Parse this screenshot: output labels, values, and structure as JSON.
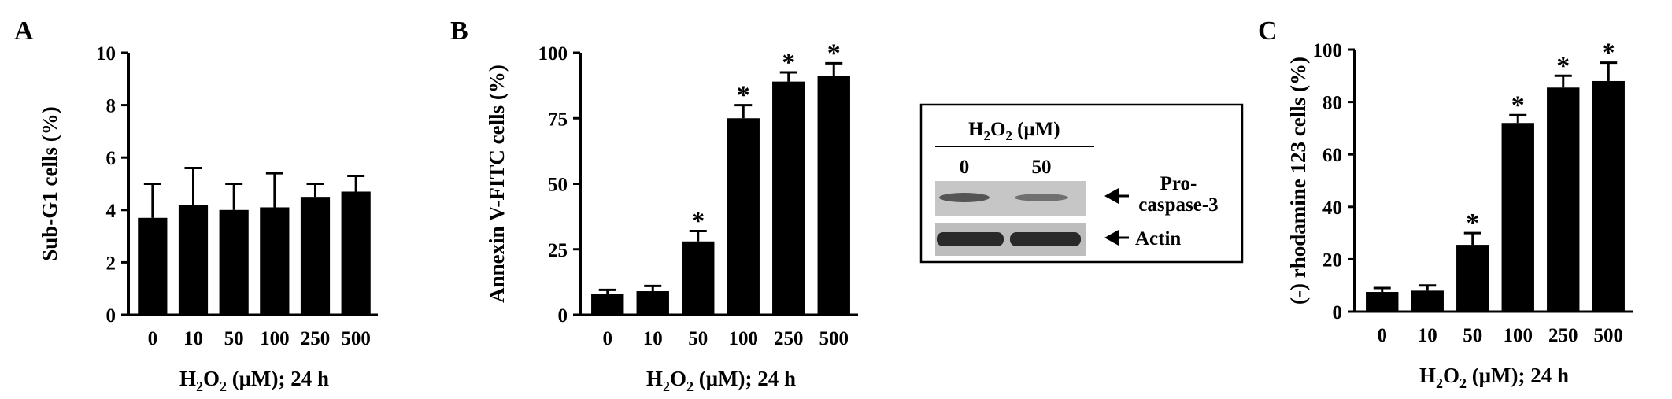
{
  "chart_data": [
    {
      "type": "bar",
      "panel_label": "A",
      "categories": [
        "0",
        "10",
        "50",
        "100",
        "250",
        "500"
      ],
      "values": [
        3.7,
        4.2,
        4.0,
        4.1,
        4.5,
        4.7
      ],
      "errors": [
        1.3,
        1.4,
        1.0,
        1.3,
        0.5,
        0.6
      ],
      "significance": [
        "",
        "",
        "",
        "",
        "",
        ""
      ],
      "ylabel": "Sub-G1 cells (%)",
      "xlabel": {
        "main": "H",
        "sub": "2",
        "main2": "O",
        "sub2": "2",
        "rest": " (μM); 24 h"
      },
      "ylim": [
        0,
        10
      ],
      "yticks": [
        0,
        2,
        4,
        6,
        8,
        10
      ],
      "grid": false,
      "bar_color": "#000000"
    },
    {
      "type": "bar",
      "panel_label": "B",
      "categories": [
        "0",
        "10",
        "50",
        "100",
        "250",
        "500"
      ],
      "values": [
        8,
        9,
        28,
        75,
        89,
        91
      ],
      "errors": [
        1.5,
        2,
        4,
        5,
        3.5,
        5
      ],
      "significance": [
        "",
        "",
        "*",
        "*",
        "*",
        "*"
      ],
      "ylabel": "Annexin V-FITC cells (%)",
      "xlabel": {
        "main": "H",
        "sub": "2",
        "main2": "O",
        "sub2": "2",
        "rest": " (μM); 24 h"
      },
      "ylim": [
        0,
        100
      ],
      "yticks": [
        0,
        25,
        50,
        75,
        100
      ],
      "grid": false,
      "bar_color": "#000000"
    },
    {
      "type": "bar",
      "panel_label": "C",
      "categories": [
        "0",
        "10",
        "50",
        "100",
        "250",
        "500"
      ],
      "values": [
        7.5,
        8,
        25.5,
        72,
        85.5,
        88
      ],
      "errors": [
        1.5,
        2,
        4.5,
        3,
        4.5,
        7
      ],
      "significance": [
        "",
        "",
        "*",
        "*",
        "*",
        "*"
      ],
      "ylabel": "(-) rhodamine 123 cells (%)",
      "xlabel": {
        "main": "H",
        "sub": "2",
        "main2": "O",
        "sub2": "2",
        "rest": " (μM); 24 h"
      },
      "ylim": [
        0,
        100
      ],
      "yticks": [
        0,
        20,
        40,
        60,
        80,
        100
      ],
      "grid": false,
      "bar_color": "#000000"
    }
  ],
  "western_blot": {
    "header": {
      "main": "H",
      "sub": "2",
      "main2": "O",
      "sub2": "2",
      "rest": " (μM)"
    },
    "lanes": [
      "0",
      "50"
    ],
    "rows": [
      {
        "label_line1": "Pro-",
        "label_line2": "caspase-3",
        "band_intensity": [
          0.55,
          0.4
        ]
      },
      {
        "label_line1": "Actin",
        "label_line2": "",
        "band_intensity": [
          0.9,
          0.9
        ]
      }
    ]
  }
}
